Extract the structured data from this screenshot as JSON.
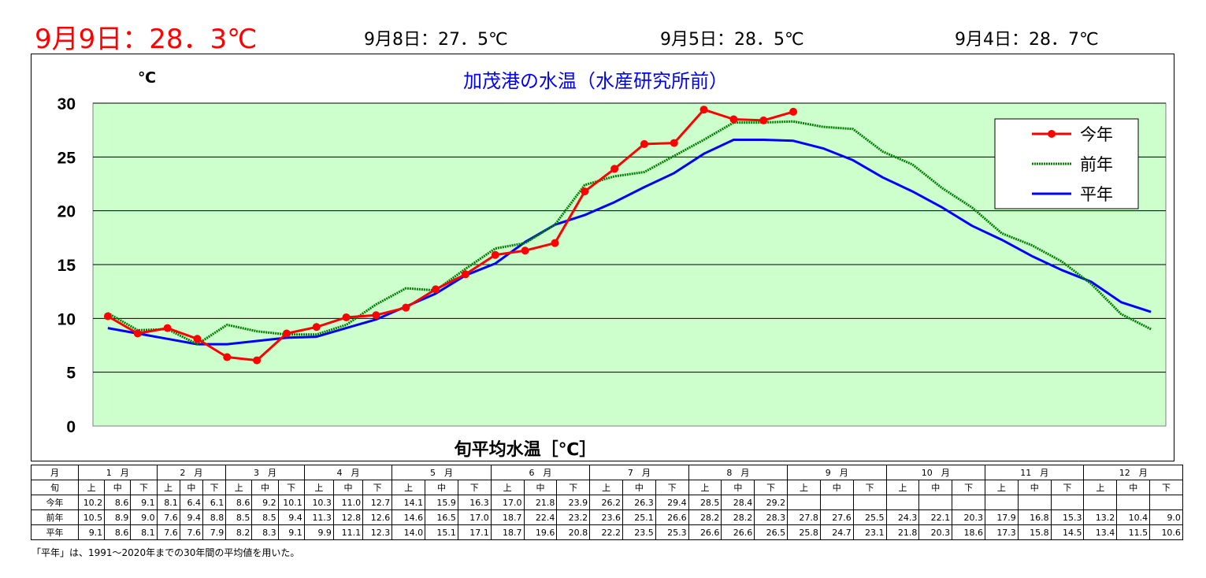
{
  "header": {
    "today": "9月9日：28．3℃",
    "day1": "9月8日：27．5℃",
    "day2": "9月5日：28．5℃",
    "day3": "9月4日：28．7℃"
  },
  "colors": {
    "plot_bg": "#ccffcc",
    "this_year": "#ff0000",
    "last_year": "#008000",
    "normal": "#0000ff",
    "title": "#0000ff",
    "today_text": "#ff0000"
  },
  "chart_data": {
    "type": "line",
    "title": "加茂港の水温（水産研究所前）",
    "ylabel": "℃",
    "xlabel": "旬平均水温［℃］",
    "ylim": [
      0,
      30
    ],
    "yticks": [
      "0",
      "5",
      "10",
      "15",
      "20",
      "25",
      "30"
    ],
    "grid": true,
    "legend_position": "top-right",
    "series": [
      {
        "name": "今年",
        "values": [
          10.2,
          8.6,
          9.1,
          8.1,
          6.4,
          6.1,
          8.6,
          9.2,
          10.1,
          10.3,
          11.0,
          12.7,
          14.1,
          15.9,
          16.3,
          17.0,
          21.8,
          23.9,
          26.2,
          26.3,
          29.4,
          28.5,
          28.4,
          29.2
        ]
      },
      {
        "name": "前年",
        "values": [
          10.5,
          8.9,
          9.0,
          7.6,
          9.4,
          8.8,
          8.5,
          8.5,
          9.4,
          11.3,
          12.8,
          12.6,
          14.6,
          16.5,
          17.0,
          18.7,
          22.4,
          23.2,
          23.6,
          25.1,
          26.6,
          28.2,
          28.2,
          28.3,
          27.8,
          27.6,
          25.5,
          24.3,
          22.1,
          20.3,
          17.9,
          16.8,
          15.3,
          13.2,
          10.4,
          9.0
        ]
      },
      {
        "name": "平年",
        "values": [
          9.1,
          8.6,
          8.1,
          7.6,
          7.6,
          7.9,
          8.2,
          8.3,
          9.1,
          9.9,
          11.1,
          12.3,
          14.0,
          15.1,
          17.1,
          18.7,
          19.6,
          20.8,
          22.2,
          23.5,
          25.3,
          26.6,
          26.6,
          26.5,
          25.8,
          24.7,
          23.1,
          21.8,
          20.3,
          18.6,
          17.3,
          15.8,
          14.5,
          13.4,
          11.5,
          10.6
        ]
      }
    ]
  },
  "table": {
    "month_header": "月",
    "period_header": "旬",
    "months": [
      "1　月",
      "2　月",
      "3　月",
      "4　月",
      "5　月",
      "6　月",
      "7　月",
      "8　月",
      "9　月",
      "10　月",
      "11　月",
      "12　月"
    ],
    "periods": [
      "上",
      "中",
      "下"
    ],
    "rows": [
      {
        "label": "今年",
        "cells": [
          "10.2",
          "8.6",
          "9.1",
          "8.1",
          "6.4",
          "6.1",
          "8.6",
          "9.2",
          "10.1",
          "10.3",
          "11.0",
          "12.7",
          "14.1",
          "15.9",
          "16.3",
          "17.0",
          "21.8",
          "23.9",
          "26.2",
          "26.3",
          "29.4",
          "28.5",
          "28.4",
          "29.2",
          "",
          "",
          "",
          "",
          "",
          "",
          "",
          "",
          "",
          "",
          "",
          ""
        ]
      },
      {
        "label": "前年",
        "cells": [
          "10.5",
          "8.9",
          "9.0",
          "7.6",
          "9.4",
          "8.8",
          "8.5",
          "8.5",
          "9.4",
          "11.3",
          "12.8",
          "12.6",
          "14.6",
          "16.5",
          "17.0",
          "18.7",
          "22.4",
          "23.2",
          "23.6",
          "25.1",
          "26.6",
          "28.2",
          "28.2",
          "28.3",
          "27.8",
          "27.6",
          "25.5",
          "24.3",
          "22.1",
          "20.3",
          "17.9",
          "16.8",
          "15.3",
          "13.2",
          "10.4",
          "9.0"
        ]
      },
      {
        "label": "平年",
        "cells": [
          "9.1",
          "8.6",
          "8.1",
          "7.6",
          "7.6",
          "7.9",
          "8.2",
          "8.3",
          "9.1",
          "9.9",
          "11.1",
          "12.3",
          "14.0",
          "15.1",
          "17.1",
          "18.7",
          "19.6",
          "20.8",
          "22.2",
          "23.5",
          "25.3",
          "26.6",
          "26.6",
          "26.5",
          "25.8",
          "24.7",
          "23.1",
          "21.8",
          "20.3",
          "18.6",
          "17.3",
          "15.8",
          "14.5",
          "13.4",
          "11.5",
          "10.6"
        ]
      }
    ]
  },
  "footnote": "「平年」は、1991～2020年までの30年間の平均値を用いた。"
}
